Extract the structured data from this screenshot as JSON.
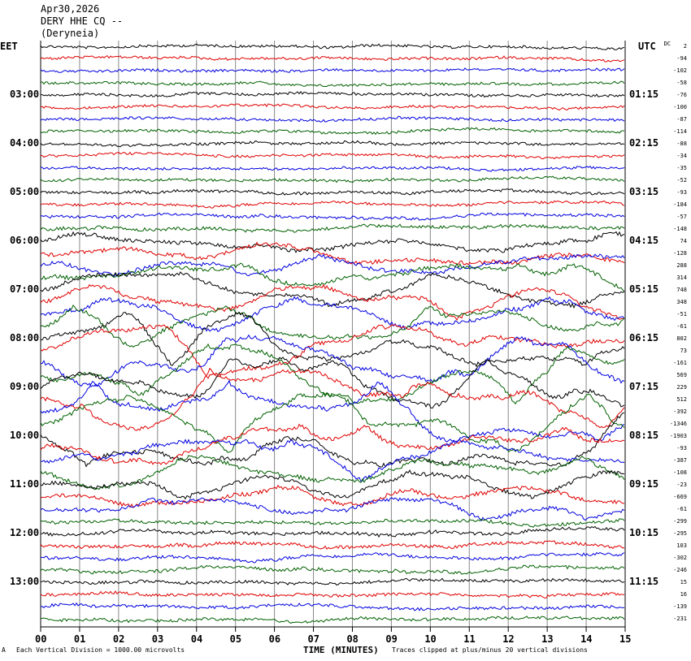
{
  "header": {
    "date": "Apr30,2026",
    "station": "DERY HHE CQ --",
    "location": "(Deryneia)"
  },
  "tz_left": "EET",
  "tz_right": "UTC",
  "dc_header": "DC",
  "footer": {
    "scale": "Each Vertical Division = 1000.00 microvolts",
    "xaxis_title": "TIME (MINUTES)",
    "clip_note": "Traces clipped at plus/minus 20 vertical divisions",
    "corner": "A"
  },
  "chart_data": {
    "type": "line",
    "x_ticks": [
      "00",
      "01",
      "02",
      "03",
      "04",
      "05",
      "06",
      "07",
      "08",
      "09",
      "10",
      "11",
      "12",
      "13",
      "14",
      "15"
    ],
    "xlim": [
      0,
      15
    ],
    "left_hour_labels": [
      "03:00",
      "04:00",
      "05:00",
      "06:00",
      "07:00",
      "08:00",
      "09:00",
      "10:00",
      "11:00",
      "12:00",
      "13:00"
    ],
    "right_hour_labels": [
      "01:15",
      "02:15",
      "03:15",
      "04:15",
      "05:15",
      "06:15",
      "07:15",
      "08:15",
      "09:15",
      "10:15",
      "11:15"
    ],
    "trace_colors": [
      "#000000",
      "#e00000",
      "#0000e0",
      "#006000"
    ],
    "dc_offsets": [
      2,
      -94,
      -102,
      -58,
      -76,
      -100,
      -87,
      -114,
      -88,
      -34,
      -35,
      -52,
      -93,
      -184,
      -57,
      -148,
      74,
      -128,
      288,
      314,
      748,
      348,
      -51,
      -61,
      802,
      73,
      -161,
      569,
      229,
      512,
      -392,
      -1346,
      -1903,
      -93,
      -387,
      -108,
      -23,
      -669,
      -61,
      -299,
      -295,
      103,
      -302,
      -246,
      15,
      16,
      -139,
      -231
    ],
    "trace_activity": [
      1,
      1,
      1,
      1,
      1,
      1,
      1,
      1,
      1,
      1,
      1,
      1,
      1.3,
      1.3,
      1.5,
      2,
      3,
      3,
      3,
      4,
      5,
      5,
      5,
      6,
      8,
      8,
      8,
      9,
      9,
      9,
      9,
      9,
      9,
      7,
      6,
      5,
      4,
      3,
      3,
      2,
      2,
      2,
      2,
      2,
      1.5,
      1.5,
      1.5,
      1.5
    ]
  }
}
